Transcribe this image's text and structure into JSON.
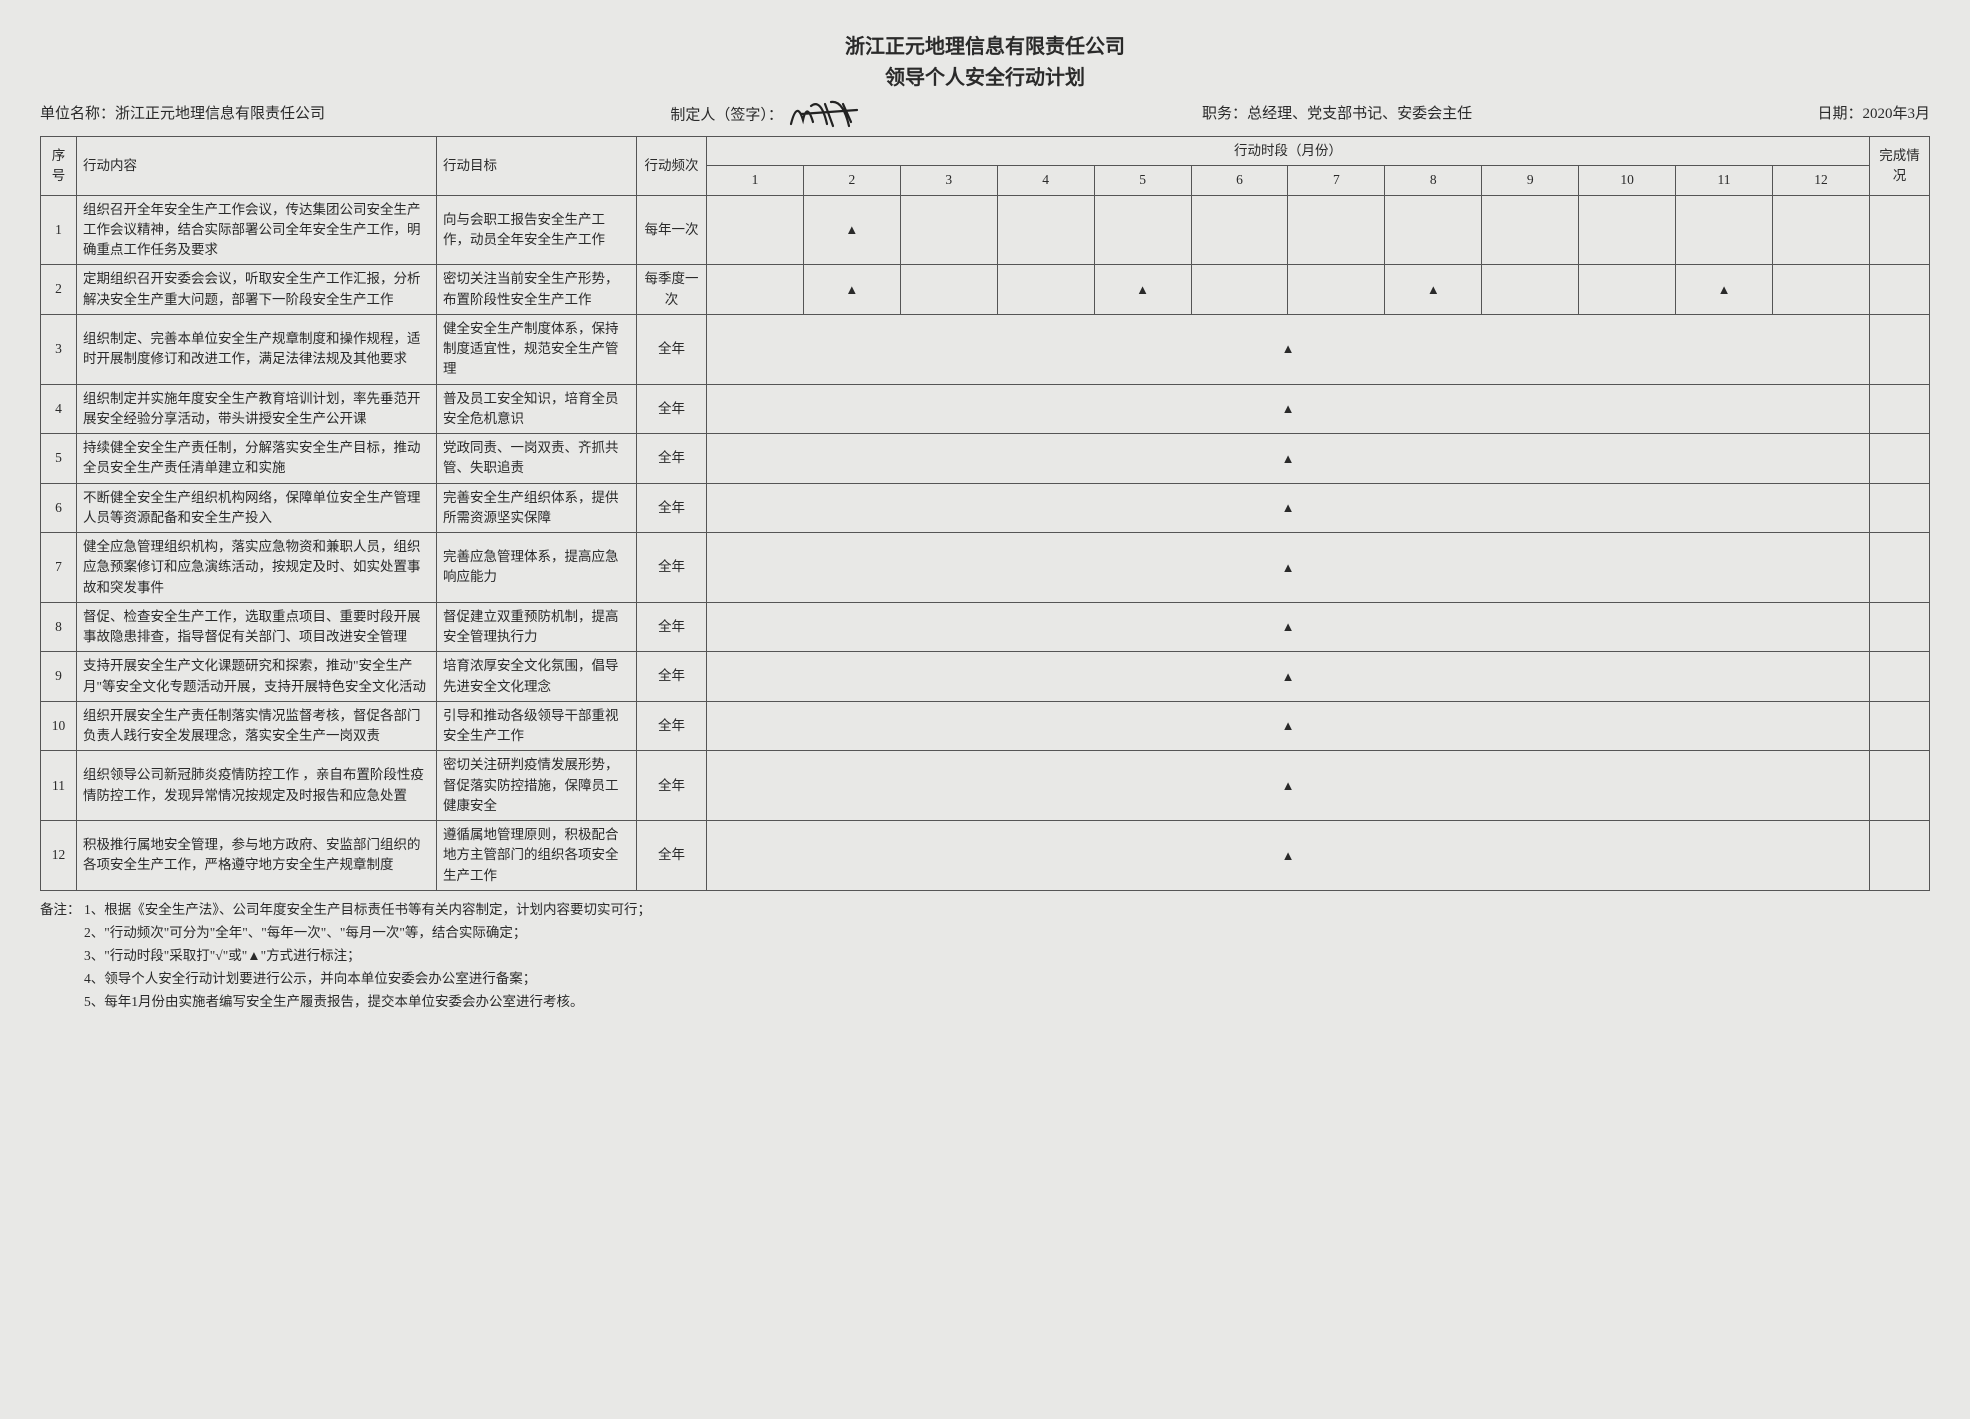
{
  "title_line1": "浙江正元地理信息有限责任公司",
  "title_line2": "领导个人安全行动计划",
  "meta": {
    "unit_label": "单位名称：",
    "unit_value": "浙江正元地理信息有限责任公司",
    "author_label": "制定人（签字）：",
    "position_label": "职务：",
    "position_value": "总经理、党支部书记、安委会主任",
    "date_label": "日期：",
    "date_value": "2020年3月"
  },
  "headers": {
    "num": "序号",
    "content": "行动内容",
    "goal": "行动目标",
    "freq": "行动频次",
    "period": "行动时段（月份）",
    "done": "完成情况",
    "months": [
      "1",
      "2",
      "3",
      "4",
      "5",
      "6",
      "7",
      "8",
      "9",
      "10",
      "11",
      "12"
    ]
  },
  "marker": "▲",
  "rows": [
    {
      "n": "1",
      "content": "组织召开全年安全生产工作会议，传达集团公司安全生产工作会议精神，结合实际部署公司全年安全生产工作，明确重点工作任务及要求",
      "goal": "向与会职工报告安全生产工作，动员全年安全生产工作",
      "freq": "每年一次",
      "months": [
        2
      ]
    },
    {
      "n": "2",
      "content": "定期组织召开安委会会议，听取安全生产工作汇报，分析解决安全生产重大问题，部署下一阶段安全生产工作",
      "goal": "密切关注当前安全生产形势，布置阶段性安全生产工作",
      "freq": "每季度一次",
      "months": [
        2,
        5,
        8,
        11
      ]
    },
    {
      "n": "3",
      "content": "组织制定、完善本单位安全生产规章制度和操作规程，适时开展制度修订和改进工作，满足法律法规及其他要求",
      "goal": "健全安全生产制度体系，保持制度适宜性，规范安全生产管理",
      "freq": "全年",
      "months": [
        6.5
      ]
    },
    {
      "n": "4",
      "content": "组织制定并实施年度安全生产教育培训计划，率先垂范开展安全经验分享活动，带头讲授安全生产公开课",
      "goal": "普及员工安全知识，培育全员安全危机意识",
      "freq": "全年",
      "months": [
        6.5
      ]
    },
    {
      "n": "5",
      "content": "持续健全安全生产责任制，分解落实安全生产目标，推动全员安全生产责任清单建立和实施",
      "goal": "党政同责、一岗双责、齐抓共管、失职追责",
      "freq": "全年",
      "months": [
        6.5
      ]
    },
    {
      "n": "6",
      "content": "不断健全安全生产组织机构网络，保障单位安全生产管理人员等资源配备和安全生产投入",
      "goal": "完善安全生产组织体系，提供所需资源坚实保障",
      "freq": "全年",
      "months": [
        6.5
      ]
    },
    {
      "n": "7",
      "content": "健全应急管理组织机构，落实应急物资和兼职人员，组织应急预案修订和应急演练活动，按规定及时、如实处置事故和突发事件",
      "goal": "完善应急管理体系，提高应急响应能力",
      "freq": "全年",
      "months": [
        6.5
      ]
    },
    {
      "n": "8",
      "content": "督促、检查安全生产工作，选取重点项目、重要时段开展事故隐患排查，指导督促有关部门、项目改进安全管理",
      "goal": "督促建立双重预防机制，提高安全管理执行力",
      "freq": "全年",
      "months": [
        6.5
      ]
    },
    {
      "n": "9",
      "content": "支持开展安全生产文化课题研究和探索，推动\"安全生产月\"等安全文化专题活动开展，支持开展特色安全文化活动",
      "goal": "培育浓厚安全文化氛围，倡导先进安全文化理念",
      "freq": "全年",
      "months": [
        6.5
      ]
    },
    {
      "n": "10",
      "content": "组织开展安全生产责任制落实情况监督考核，督促各部门负责人践行安全发展理念，落实安全生产一岗双责",
      "goal": "引导和推动各级领导干部重视安全生产工作",
      "freq": "全年",
      "months": [
        6.5
      ]
    },
    {
      "n": "11",
      "content": "组织领导公司新冠肺炎疫情防控工作 ，亲自布置阶段性疫情防控工作，发现异常情况按规定及时报告和应急处置",
      "goal": "密切关注研判疫情发展形势，督促落实防控措施，保障员工健康安全",
      "freq": "全年",
      "months": [
        6.5
      ]
    },
    {
      "n": "12",
      "content": "积极推行属地安全管理，参与地方政府、安监部门组织的各项安全生产工作，严格遵守地方安全生产规章制度",
      "goal": "遵循属地管理原则，积极配合地方主管部门的组织各项安全生产工作",
      "freq": "全年",
      "months": [
        6.5
      ]
    }
  ],
  "notes": {
    "label": "备注：",
    "items": [
      "1、根据《安全生产法》、公司年度安全生产目标责任书等有关内容制定，计划内容要切实可行；",
      "2、\"行动频次\"可分为\"全年\"、\"每年一次\"、\"每月一次\"等，结合实际确定；",
      "3、\"行动时段\"采取打\"√\"或\"▲\"方式进行标注；",
      "4、领导个人安全行动计划要进行公示，并向本单位安委会办公室进行备案；",
      "5、每年1月份由实施者编写安全生产履责报告，提交本单位安委会办公室进行考核。"
    ]
  }
}
